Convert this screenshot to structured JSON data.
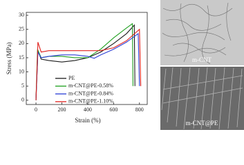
{
  "chart_data": {
    "type": "line",
    "xlabel": "Strain (%)",
    "ylabel": "Stress (MPa)",
    "xlim": [
      -75,
      860
    ],
    "ylim": [
      -1.5,
      31
    ],
    "xticks": [
      0,
      200,
      400,
      600,
      800
    ],
    "yticks": [
      0,
      5,
      10,
      15,
      20,
      25,
      30
    ],
    "series": [
      {
        "name": "PE",
        "color": "#1a1a1a",
        "x": [
          0,
          15,
          40,
          100,
          200,
          300,
          400,
          500,
          600,
          700,
          760,
          765
        ],
        "values": [
          0,
          17.5,
          14.5,
          14,
          13.5,
          14,
          15,
          17,
          20,
          23.5,
          26.5,
          5
        ]
      },
      {
        "name": "m-CNT@PE-0.58%",
        "color": "#1fa01f",
        "x": [
          0,
          12,
          40,
          100,
          200,
          300,
          400,
          500,
          600,
          700,
          745,
          750
        ],
        "values": [
          0,
          18,
          15,
          15.5,
          15.5,
          15,
          15,
          18,
          22,
          25.5,
          27,
          5
        ]
      },
      {
        "name": "m-CNT@PE-0.84%",
        "color": "#2b3fd6",
        "x": [
          0,
          15,
          40,
          100,
          200,
          300,
          400,
          450,
          500,
          600,
          700,
          790,
          800
        ],
        "values": [
          0,
          17,
          15,
          15.5,
          16,
          16,
          15.5,
          14.8,
          16,
          18,
          20.5,
          23.5,
          5
        ]
      },
      {
        "name": "m-CNT@PE-1.10%",
        "color": "#e0201c",
        "x": [
          0,
          15,
          40,
          100,
          200,
          300,
          400,
          500,
          600,
          700,
          800,
          810
        ],
        "values": [
          0,
          20.5,
          17,
          17.5,
          17.5,
          17.5,
          17.5,
          17.5,
          18.5,
          21,
          25,
          5
        ]
      }
    ]
  },
  "micrographs": [
    {
      "label": "m-CNT"
    },
    {
      "label": "m-CNT@PE"
    }
  ]
}
